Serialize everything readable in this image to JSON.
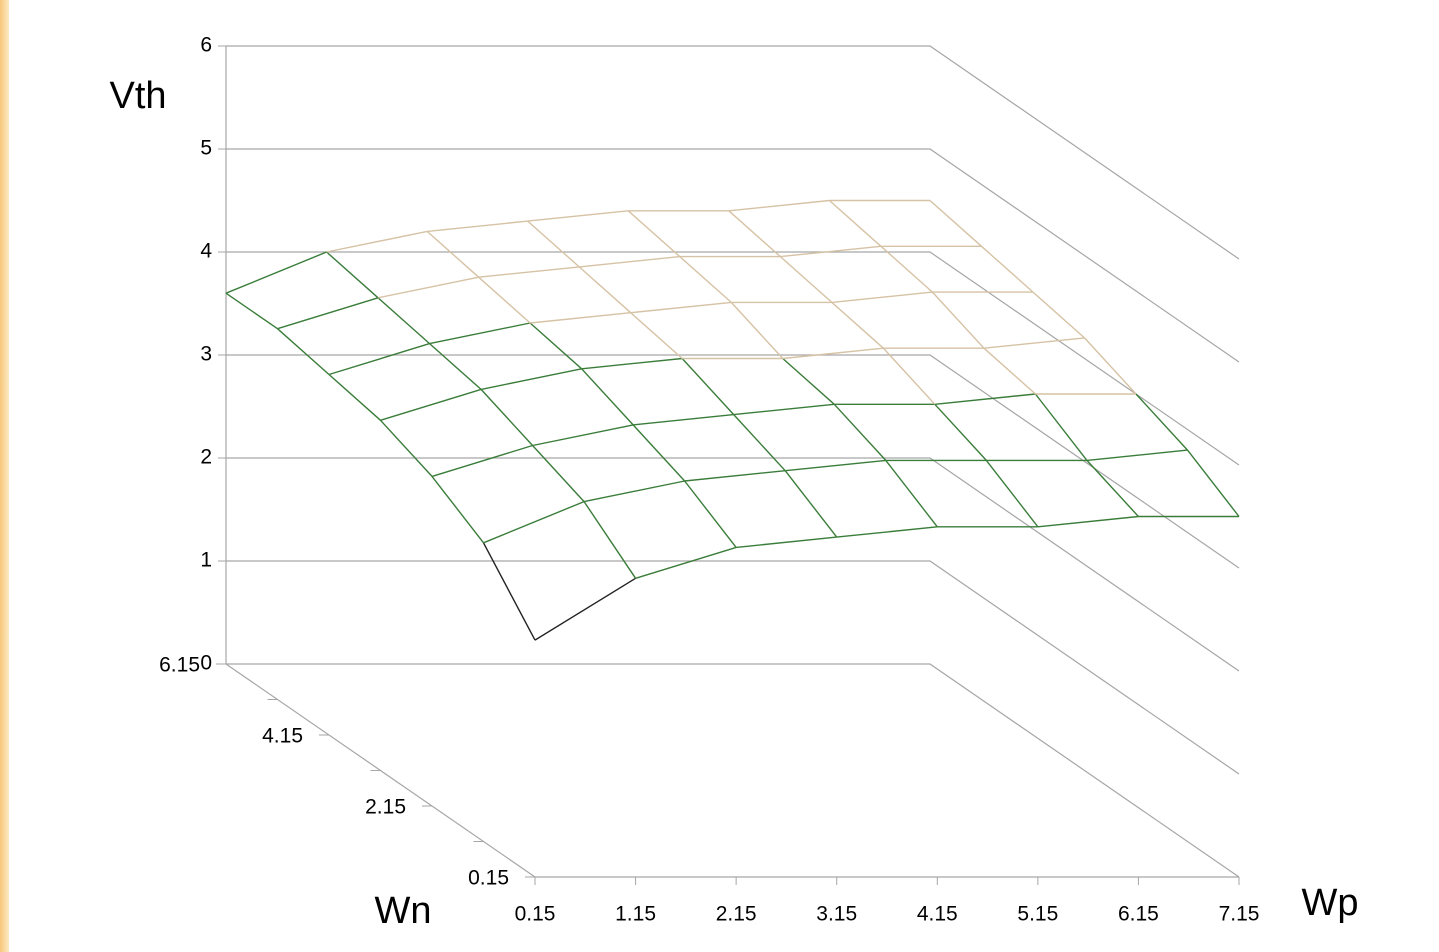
{
  "chart_data": {
    "type": "surface",
    "x_label": "Wp",
    "y_label": "Vth",
    "depth_label": "Wn",
    "x": [
      0.15,
      1.15,
      2.15,
      3.15,
      4.15,
      5.15,
      6.15,
      7.15
    ],
    "depth": [
      0.15,
      1.15,
      2.15,
      3.15,
      4.15,
      5.15,
      6.15
    ],
    "depth_labels": [
      0.15,
      null,
      2.15,
      null,
      4.15,
      null,
      6.15
    ],
    "z": [
      [
        2.3,
        2.9,
        3.2,
        3.3,
        3.4,
        3.4,
        3.5,
        3.5
      ],
      [
        2.9,
        3.3,
        3.5,
        3.6,
        3.7,
        3.7,
        3.7,
        3.8
      ],
      [
        3.2,
        3.5,
        3.7,
        3.8,
        3.9,
        3.9,
        4.0,
        4.0
      ],
      [
        3.4,
        3.7,
        3.9,
        4.0,
        4.0,
        4.1,
        4.1,
        4.2
      ],
      [
        3.5,
        3.8,
        4.0,
        4.1,
        4.2,
        4.2,
        4.3,
        4.3
      ],
      [
        3.6,
        3.9,
        4.1,
        4.2,
        4.3,
        4.3,
        4.4,
        4.4
      ],
      [
        3.6,
        4.0,
        4.2,
        4.3,
        4.4,
        4.4,
        4.5,
        4.5
      ]
    ],
    "band_colors": [
      "#222222",
      "#222222",
      "#222222",
      "#3a7d3a",
      "#d6c2a4",
      "#d6c2a4"
    ],
    "xlim": [
      0.15,
      7.15
    ],
    "depthlim": [
      0.15,
      6.15
    ],
    "ylim": [
      0,
      6
    ],
    "yticks": [
      0,
      1,
      2,
      3,
      4,
      5,
      6
    ],
    "grid": true
  }
}
